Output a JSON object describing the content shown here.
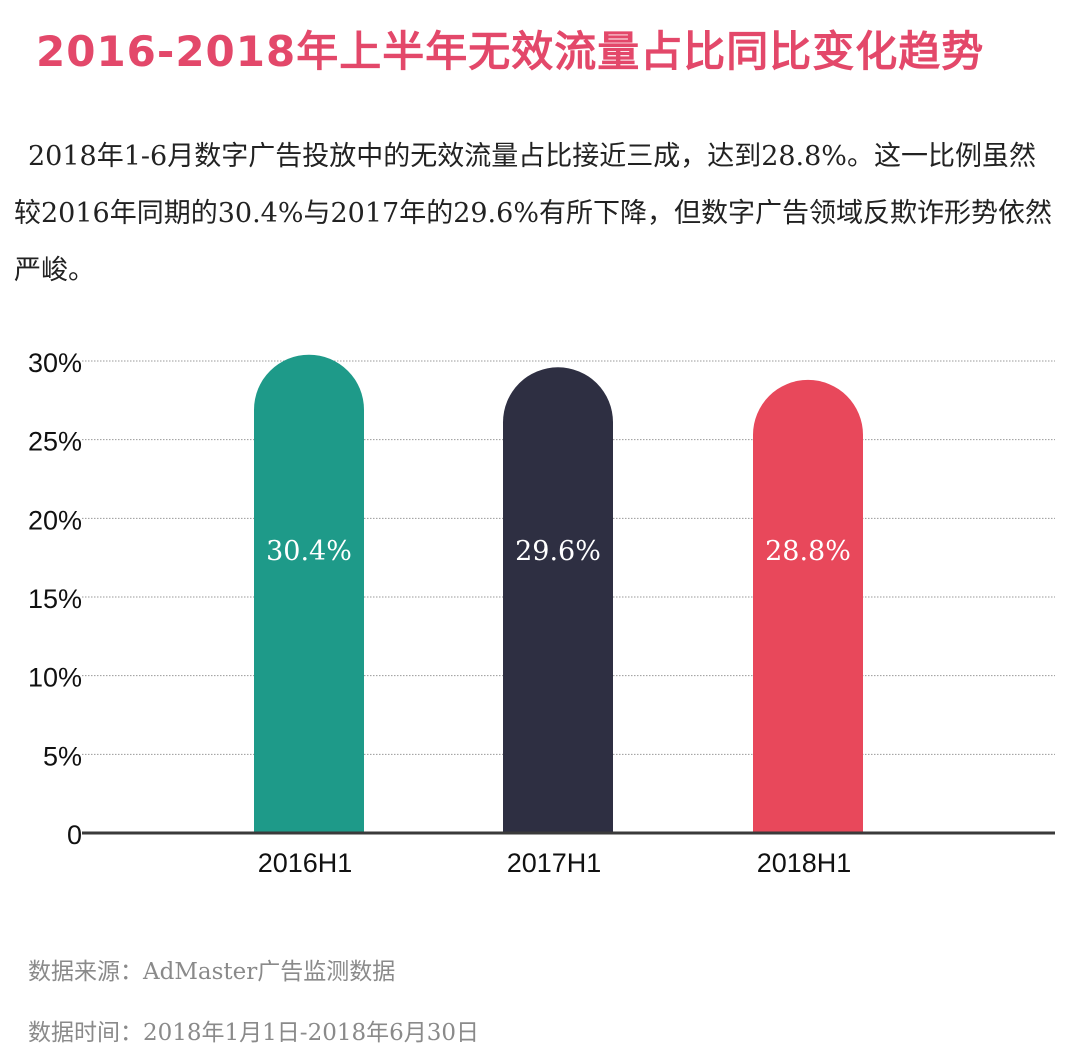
{
  "title": "2016-2018年上半年无效流量占比同比变化趋势",
  "description": "2018年1-6月数字广告投放中的无效流量占比接近三成，达到28.8%。这一比例虽然较2016年同期的30.4%与2017年的29.6%有所下降，但数字广告领域反欺诈形势依然严峻。",
  "footer": {
    "source": "数据来源：AdMaster广告监测数据",
    "period": "数据时间：2018年1月1日-2018年6月30日"
  },
  "chart_data": {
    "type": "bar",
    "categories": [
      "2016H1",
      "2017H1",
      "2018H1"
    ],
    "values": [
      30.4,
      29.6,
      28.8
    ],
    "data_labels": [
      "30.4%",
      "29.6%",
      "28.8%"
    ],
    "colors": [
      "#1e9a89",
      "#2e2f42",
      "#e8485b"
    ],
    "ylim": [
      0,
      30
    ],
    "yticks": [
      0,
      5,
      10,
      15,
      20,
      25,
      30
    ],
    "ytick_labels": [
      "0",
      "5%",
      "10%",
      "15%",
      "20%",
      "25%",
      "30%"
    ],
    "grid": true,
    "title": "",
    "xlabel": "",
    "ylabel": ""
  }
}
